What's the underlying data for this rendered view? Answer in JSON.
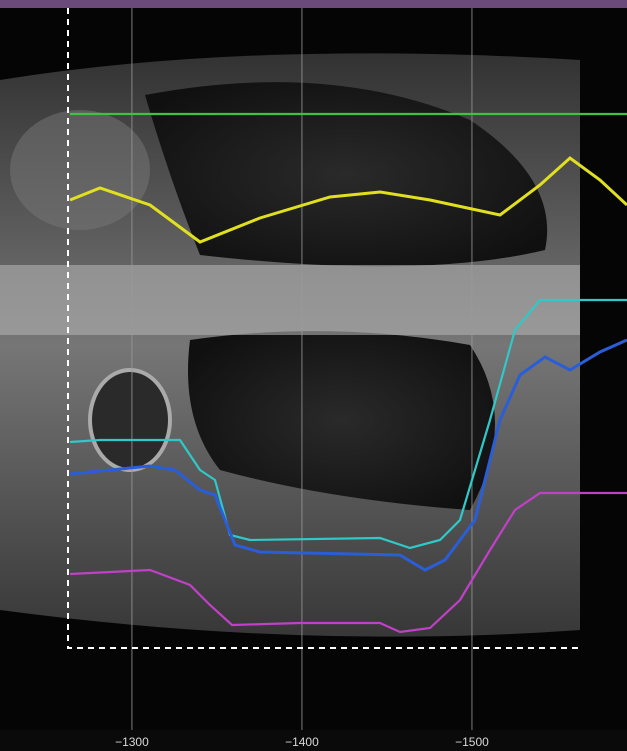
{
  "chart_data": {
    "type": "line",
    "xlim": [
      -1222.4,
      -1591.2
    ],
    "xticks": [
      {
        "value": -1300,
        "label": "−1300"
      },
      {
        "value": -1400,
        "label": "−1400"
      },
      {
        "value": -1500,
        "label": "−1500"
      }
    ],
    "grid": true
  }
}
